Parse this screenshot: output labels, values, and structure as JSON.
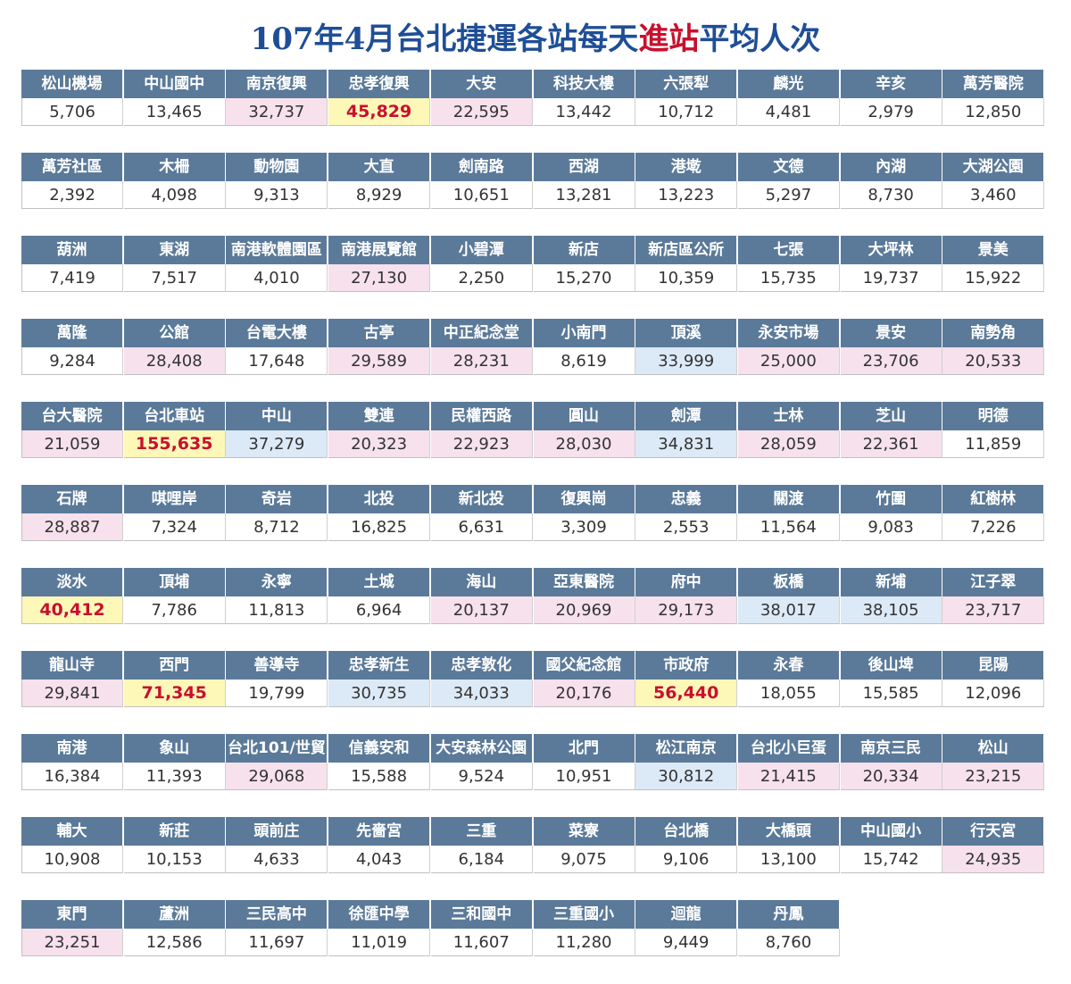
{
  "title_pre": "107年4月台北捷運各站每天",
  "title_hl": "進站",
  "title_post": "平均人次",
  "colors": {
    "header": "#5b7a99",
    "pink": "#f6e1ec",
    "blue": "#dce9f6",
    "yellow": "#fdf7b8",
    "highlight_text": "#c8102e",
    "title": "#1f4e96"
  },
  "rows": [
    [
      [
        "松山機場",
        "5,706",
        ""
      ],
      [
        "中山國中",
        "13,465",
        ""
      ],
      [
        "南京復興",
        "32,737",
        "pink"
      ],
      [
        "忠孝復興",
        "45,829",
        "yellow"
      ],
      [
        "大安",
        "22,595",
        "pink"
      ],
      [
        "科技大樓",
        "13,442",
        ""
      ],
      [
        "六張犁",
        "10,712",
        ""
      ],
      [
        "麟光",
        "4,481",
        ""
      ],
      [
        "辛亥",
        "2,979",
        ""
      ],
      [
        "萬芳醫院",
        "12,850",
        ""
      ]
    ],
    [
      [
        "萬芳社區",
        "2,392",
        ""
      ],
      [
        "木柵",
        "4,098",
        ""
      ],
      [
        "動物園",
        "9,313",
        ""
      ],
      [
        "大直",
        "8,929",
        ""
      ],
      [
        "劍南路",
        "10,651",
        ""
      ],
      [
        "西湖",
        "13,281",
        ""
      ],
      [
        "港墘",
        "13,223",
        ""
      ],
      [
        "文德",
        "5,297",
        ""
      ],
      [
        "內湖",
        "8,730",
        ""
      ],
      [
        "大湖公園",
        "3,460",
        ""
      ]
    ],
    [
      [
        "葫洲",
        "7,419",
        ""
      ],
      [
        "東湖",
        "7,517",
        ""
      ],
      [
        "南港軟體園區",
        "4,010",
        ""
      ],
      [
        "南港展覽館",
        "27,130",
        "pink"
      ],
      [
        "小碧潭",
        "2,250",
        ""
      ],
      [
        "新店",
        "15,270",
        ""
      ],
      [
        "新店區公所",
        "10,359",
        ""
      ],
      [
        "七張",
        "15,735",
        ""
      ],
      [
        "大坪林",
        "19,737",
        ""
      ],
      [
        "景美",
        "15,922",
        ""
      ]
    ],
    [
      [
        "萬隆",
        "9,284",
        ""
      ],
      [
        "公館",
        "28,408",
        "pink"
      ],
      [
        "台電大樓",
        "17,648",
        ""
      ],
      [
        "古亭",
        "29,589",
        "pink"
      ],
      [
        "中正紀念堂",
        "28,231",
        "pink"
      ],
      [
        "小南門",
        "8,619",
        ""
      ],
      [
        "頂溪",
        "33,999",
        "blue"
      ],
      [
        "永安市場",
        "25,000",
        "pink"
      ],
      [
        "景安",
        "23,706",
        "pink"
      ],
      [
        "南勢角",
        "20,533",
        "pink"
      ]
    ],
    [
      [
        "台大醫院",
        "21,059",
        "pink"
      ],
      [
        "台北車站",
        "155,635",
        "yellow"
      ],
      [
        "中山",
        "37,279",
        "blue"
      ],
      [
        "雙連",
        "20,323",
        "pink"
      ],
      [
        "民權西路",
        "22,923",
        "pink"
      ],
      [
        "圓山",
        "28,030",
        "pink"
      ],
      [
        "劍潭",
        "34,831",
        "blue"
      ],
      [
        "士林",
        "28,059",
        "pink"
      ],
      [
        "芝山",
        "22,361",
        "pink"
      ],
      [
        "明德",
        "11,859",
        ""
      ]
    ],
    [
      [
        "石牌",
        "28,887",
        "pink"
      ],
      [
        "唭哩岸",
        "7,324",
        ""
      ],
      [
        "奇岩",
        "8,712",
        ""
      ],
      [
        "北投",
        "16,825",
        ""
      ],
      [
        "新北投",
        "6,631",
        ""
      ],
      [
        "復興崗",
        "3,309",
        ""
      ],
      [
        "忠義",
        "2,553",
        ""
      ],
      [
        "關渡",
        "11,564",
        ""
      ],
      [
        "竹圍",
        "9,083",
        ""
      ],
      [
        "紅樹林",
        "7,226",
        ""
      ]
    ],
    [
      [
        "淡水",
        "40,412",
        "yellow"
      ],
      [
        "頂埔",
        "7,786",
        ""
      ],
      [
        "永寧",
        "11,813",
        ""
      ],
      [
        "土城",
        "6,964",
        ""
      ],
      [
        "海山",
        "20,137",
        "pink"
      ],
      [
        "亞東醫院",
        "20,969",
        "pink"
      ],
      [
        "府中",
        "29,173",
        "pink"
      ],
      [
        "板橋",
        "38,017",
        "blue"
      ],
      [
        "新埔",
        "38,105",
        "blue"
      ],
      [
        "江子翠",
        "23,717",
        "pink"
      ]
    ],
    [
      [
        "龍山寺",
        "29,841",
        "pink"
      ],
      [
        "西門",
        "71,345",
        "yellow"
      ],
      [
        "善導寺",
        "19,799",
        ""
      ],
      [
        "忠孝新生",
        "30,735",
        "blue"
      ],
      [
        "忠孝敦化",
        "34,033",
        "blue"
      ],
      [
        "國父紀念館",
        "20,176",
        "pink"
      ],
      [
        "市政府",
        "56,440",
        "yellow"
      ],
      [
        "永春",
        "18,055",
        ""
      ],
      [
        "後山埤",
        "15,585",
        ""
      ],
      [
        "昆陽",
        "12,096",
        ""
      ]
    ],
    [
      [
        "南港",
        "16,384",
        ""
      ],
      [
        "象山",
        "11,393",
        ""
      ],
      [
        "台北101/世貿",
        "29,068",
        "pink"
      ],
      [
        "信義安和",
        "15,588",
        ""
      ],
      [
        "大安森林公園",
        "9,524",
        ""
      ],
      [
        "北門",
        "10,951",
        ""
      ],
      [
        "松江南京",
        "30,812",
        "blue"
      ],
      [
        "台北小巨蛋",
        "21,415",
        "pink"
      ],
      [
        "南京三民",
        "20,334",
        "pink"
      ],
      [
        "松山",
        "23,215",
        "pink"
      ]
    ],
    [
      [
        "輔大",
        "10,908",
        ""
      ],
      [
        "新莊",
        "10,153",
        ""
      ],
      [
        "頭前庄",
        "4,633",
        ""
      ],
      [
        "先嗇宮",
        "4,043",
        ""
      ],
      [
        "三重",
        "6,184",
        ""
      ],
      [
        "菜寮",
        "9,075",
        ""
      ],
      [
        "台北橋",
        "9,106",
        ""
      ],
      [
        "大橋頭",
        "13,100",
        ""
      ],
      [
        "中山國小",
        "15,742",
        ""
      ],
      [
        "行天宮",
        "24,935",
        "pink"
      ]
    ],
    [
      [
        "東門",
        "23,251",
        "pink"
      ],
      [
        "蘆洲",
        "12,586",
        ""
      ],
      [
        "三民高中",
        "11,697",
        ""
      ],
      [
        "徐匯中學",
        "11,019",
        ""
      ],
      [
        "三和國中",
        "11,607",
        ""
      ],
      [
        "三重國小",
        "11,280",
        ""
      ],
      [
        "迴龍",
        "9,449",
        ""
      ],
      [
        "丹鳳",
        "8,760",
        ""
      ]
    ]
  ]
}
